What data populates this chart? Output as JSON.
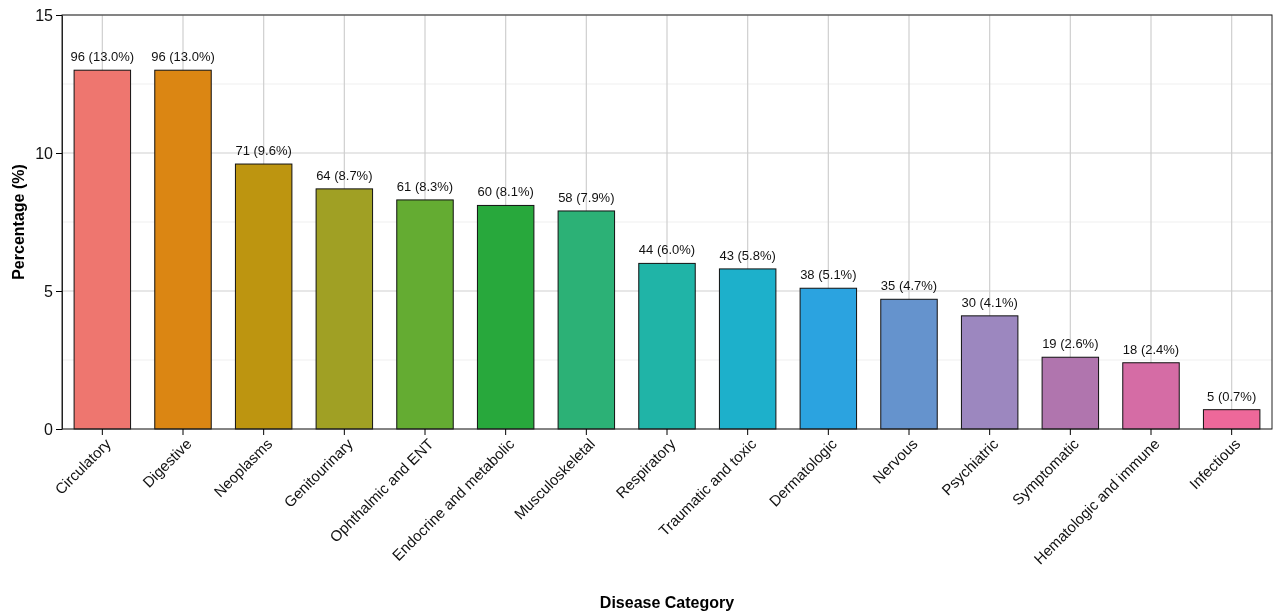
{
  "chart_data": {
    "type": "bar",
    "xlabel": "Disease Category",
    "ylabel": "Percentage (%)",
    "categories": [
      "Circulatory",
      "Digestive",
      "Neoplasms",
      "Genitourinary",
      "Ophthalmic and ENT",
      "Endocrine and metabolic",
      "Musculoskeletal",
      "Respiratory",
      "Traumatic and toxic",
      "Dermatologic",
      "Nervous",
      "Psychiatric",
      "Symptomatic",
      "Hematologic and immune",
      "Infectious"
    ],
    "values": [
      13.0,
      13.0,
      9.6,
      8.7,
      8.3,
      8.1,
      7.9,
      6.0,
      5.8,
      5.1,
      4.7,
      4.1,
      2.6,
      2.4,
      0.7
    ],
    "value_labels": [
      "96 (13.0%)",
      "96 (13.0%)",
      "71 (9.6%)",
      "64 (8.7%)",
      "61 (8.3%)",
      "60 (8.1%)",
      "58 (7.9%)",
      "44 (6.0%)",
      "43 (5.8%)",
      "38 (5.1%)",
      "35 (4.7%)",
      "30 (4.1%)",
      "19 (2.6%)",
      "18 (2.4%)",
      "5 (0.7%)"
    ],
    "colors": [
      "#ee766f",
      "#db8613",
      "#bd9510",
      "#a0a024",
      "#64ac32",
      "#28a83c",
      "#2cb176",
      "#20b4a7",
      "#1db0cb",
      "#2ba3e0",
      "#6593cd",
      "#9c87bf",
      "#b075ae",
      "#d56ca5",
      "#ee689a"
    ],
    "ylim": [
      0,
      15
    ],
    "yticks": [
      0,
      {
        "value": 2.5,
        "label": null
      },
      5,
      {
        "value": 7.5,
        "label": null
      },
      10,
      {
        "value": 12.5,
        "label": null
      },
      15
    ],
    "grid": true
  }
}
